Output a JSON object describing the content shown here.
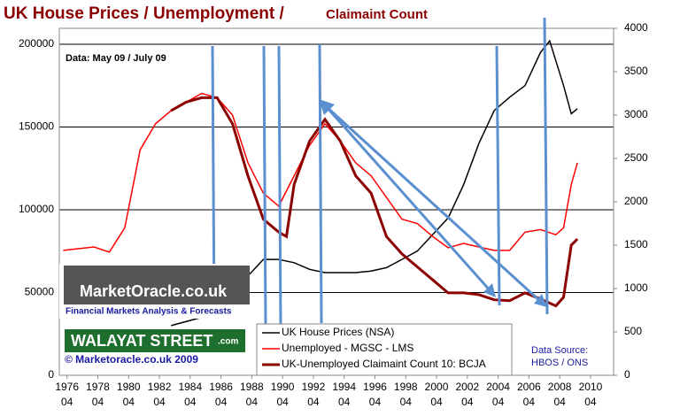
{
  "chart_data": {
    "type": "line",
    "title": "UK House Prices  / Unemployment  /",
    "subtitle": "Claimaint Count",
    "annotations": [
      "Data: May 09 / July 09",
      "Data Source:",
      "HBOS / ONS"
    ],
    "branding": [
      "MarketOracle.co.uk",
      "Financial Markets Analysis & Forecasts",
      "WALAYAT STREET",
      ".com",
      "© Marketoracle.co.uk  2009"
    ],
    "xlim": [
      1975.75,
      2011.75
    ],
    "xticks": [
      {
        "value": 1976.25,
        "label": "1976 04"
      },
      {
        "value": 1978.25,
        "label": "1978 04"
      },
      {
        "value": 1980.25,
        "label": "1980 04"
      },
      {
        "value": 1982.25,
        "label": "1982 04"
      },
      {
        "value": 1984.25,
        "label": "1984 04"
      },
      {
        "value": 1986.25,
        "label": "1986 04"
      },
      {
        "value": 1988.25,
        "label": "1988 04"
      },
      {
        "value": 1990.25,
        "label": "1990 04"
      },
      {
        "value": 1992.25,
        "label": "1992 04"
      },
      {
        "value": 1994.25,
        "label": "1994 04"
      },
      {
        "value": 1996.25,
        "label": "1996 04"
      },
      {
        "value": 1998.25,
        "label": "1998 04"
      },
      {
        "value": 2000.25,
        "label": "2000 04"
      },
      {
        "value": 2002.25,
        "label": "2002 04"
      },
      {
        "value": 2004.25,
        "label": "2004 04"
      },
      {
        "value": 2006.25,
        "label": "2006 04"
      },
      {
        "value": 2008.25,
        "label": "2008 04"
      },
      {
        "value": 2010.25,
        "label": "2010 04"
      }
    ],
    "ylim": [
      0,
      209600
    ],
    "yticks": [
      0,
      50000,
      100000,
      150000,
      200000
    ],
    "y2lim": [
      0,
      4000
    ],
    "y2ticks": [
      0,
      500,
      1000,
      1500,
      2000,
      2500,
      3000,
      3500,
      4000
    ],
    "grid": true,
    "series": [
      {
        "name": "UK House Prices (NSA)",
        "color": "#000000",
        "axis": "y",
        "x": [
          1983,
          1985,
          1986,
          1987,
          1988,
          1989,
          1990,
          1991,
          1992,
          1993,
          1995,
          1996,
          1997,
          1998,
          1999,
          2000,
          2001,
          2002,
          2003,
          2004,
          2005,
          2006,
          2007,
          2007.6,
          2008,
          2008.5,
          2009,
          2009.4
        ],
        "values": [
          30000,
          35000,
          40000,
          47000,
          60000,
          70000,
          70000,
          68000,
          64000,
          62000,
          62000,
          63000,
          65000,
          70000,
          75000,
          85000,
          95000,
          115000,
          140000,
          160000,
          168000,
          175000,
          195000,
          202000,
          190000,
          175000,
          158000,
          161000
        ]
      },
      {
        "name": "Unemployed - MGSC - LMS",
        "color": "#ff0000",
        "axis": "y2",
        "x": [
          1976,
          1978,
          1979,
          1980,
          1981,
          1982,
          1983,
          1984,
          1985,
          1986,
          1987,
          1988,
          1989,
          1990,
          1991,
          1992,
          1993,
          1994,
          1995,
          1996,
          1997,
          1998,
          1999,
          2000,
          2001,
          2002,
          2003,
          2004,
          2005,
          2006,
          2007,
          2008,
          2008.5,
          2009,
          2009.4
        ],
        "values": [
          1440,
          1480,
          1420,
          1700,
          2600,
          2900,
          3050,
          3150,
          3250,
          3200,
          3000,
          2450,
          2100,
          1950,
          2300,
          2650,
          2900,
          2700,
          2450,
          2300,
          2050,
          1800,
          1750,
          1600,
          1470,
          1520,
          1480,
          1440,
          1440,
          1650,
          1680,
          1620,
          1700,
          2200,
          2450
        ]
      },
      {
        "name": "UK-Unemployed Claimaint Count 10: BCJA",
        "color": "#8b0000",
        "axis": "y2",
        "x": [
          1983,
          1984,
          1985,
          1986,
          1987,
          1988,
          1989,
          1990,
          1990.5,
          1991,
          1992,
          1993,
          1994,
          1995,
          1996,
          1997,
          1998,
          1999,
          2000,
          2001,
          2002,
          2003,
          2004,
          2005,
          2006,
          2007,
          2008,
          2008.5,
          2009,
          2009.4
        ],
        "values": [
          3050,
          3150,
          3200,
          3200,
          2900,
          2300,
          1800,
          1650,
          1600,
          2200,
          2700,
          2950,
          2700,
          2300,
          2100,
          1600,
          1400,
          1250,
          1100,
          950,
          950,
          930,
          870,
          860,
          950,
          880,
          800,
          900,
          1500,
          1570
        ]
      }
    ]
  }
}
